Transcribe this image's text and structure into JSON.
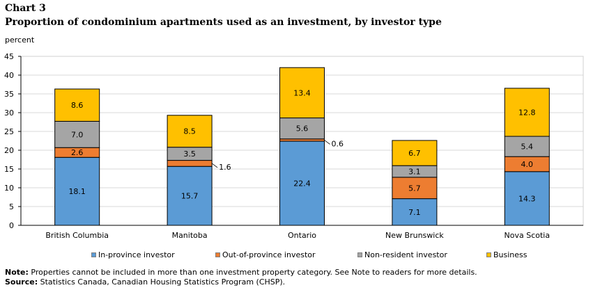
{
  "header": {
    "chart_label": "Chart 3",
    "title": "Proportion of condominium  apartments used as an investment, by investor type"
  },
  "footer": {
    "note_label": "Note:",
    "note_text": " Properties cannot be included in more than one investment property category. See Note to  readers for more details.",
    "source_label": "Source:",
    "source_text": " Statistics Canada, Canadian Housing Statistics Program (CHSP)."
  },
  "colors": {
    "in_province": "#5b9bd5",
    "out_of_province": "#ed7d31",
    "non_resident": "#a5a5a5",
    "business": "#ffc000",
    "grid": "#d9d9d9",
    "axis": "#000000"
  },
  "chart_data": {
    "type": "bar",
    "stacked": true,
    "title": "Proportion of condominium  apartments used as an investment, by investor type",
    "ylabel": "percent",
    "xlabel": "",
    "ylim": [
      0,
      45
    ],
    "yticks": [
      0,
      5,
      10,
      15,
      20,
      25,
      30,
      35,
      40,
      45
    ],
    "grid": true,
    "legend_position": "bottom",
    "categories": [
      "British Columbia",
      "Manitoba",
      "Ontario",
      "New Brunswick",
      "Nova Scotia"
    ],
    "series": [
      {
        "name": "In-province investor",
        "values": [
          18.1,
          15.7,
          22.4,
          7.1,
          14.3
        ],
        "labels": [
          "18.1",
          "15.7",
          "22.4",
          "7.1",
          "14.3"
        ]
      },
      {
        "name": "Out-of-province investor",
        "values": [
          2.6,
          1.6,
          0.6,
          5.7,
          4.0
        ],
        "labels": [
          "2.6",
          "1.6",
          "0.6",
          "5.7",
          "4.0"
        ]
      },
      {
        "name": "Non-resident investor",
        "values": [
          7.0,
          3.5,
          5.6,
          3.1,
          5.4
        ],
        "labels": [
          "7.0",
          "3.5",
          "5.6",
          "3.1",
          "5.4"
        ]
      },
      {
        "name": "Business",
        "values": [
          8.6,
          8.5,
          13.4,
          6.7,
          12.8
        ],
        "labels": [
          "8.6",
          "8.5",
          "13.4",
          "6.7",
          "12.8"
        ]
      }
    ]
  }
}
